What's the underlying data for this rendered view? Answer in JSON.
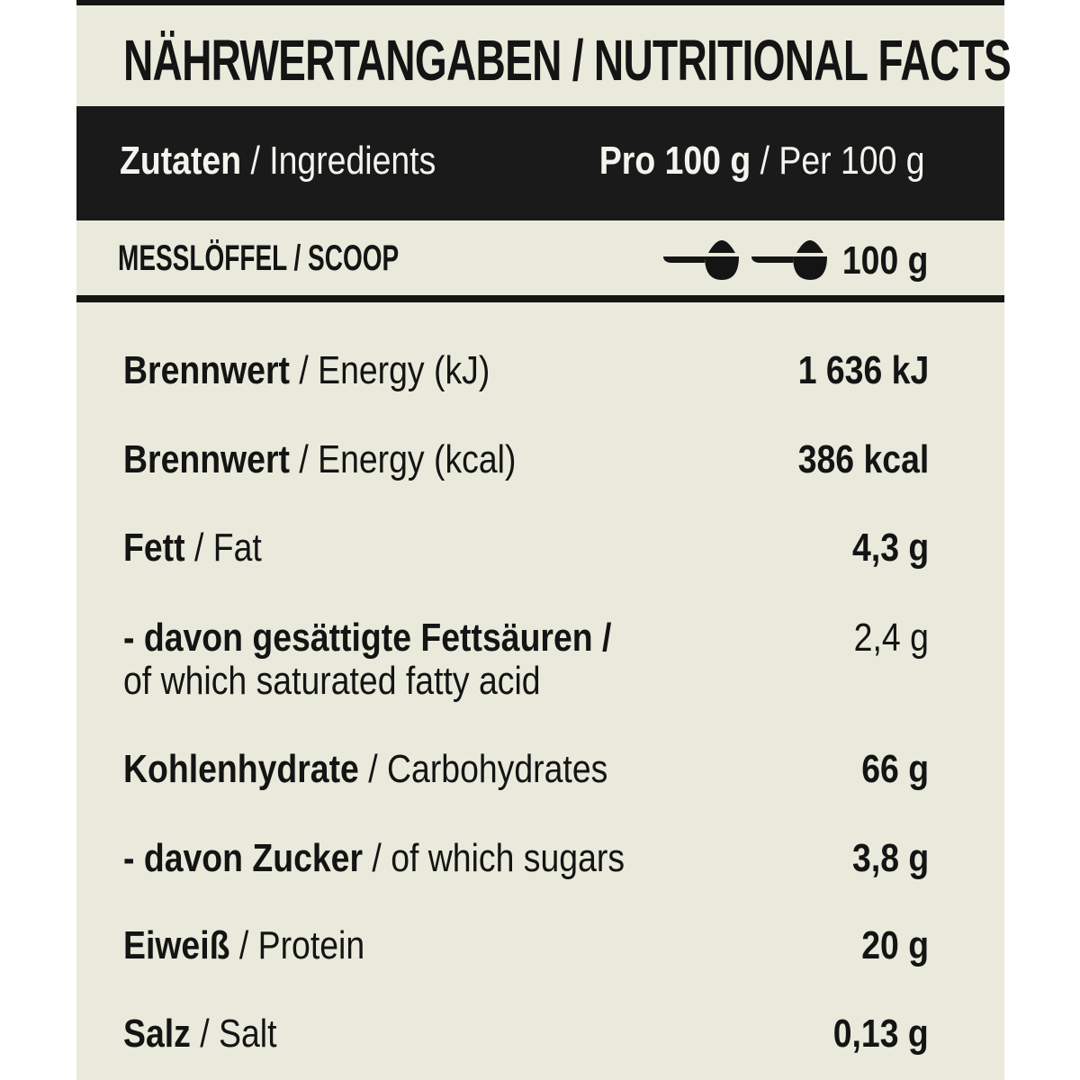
{
  "title": "NÄHRWERTANGABEN / NUTRITIONAL FACTS",
  "header": {
    "left_bold": "Zutaten",
    "left_rest": " / Ingredients",
    "right_bold": "Pro 100 g",
    "right_rest": " / Per 100 g"
  },
  "scoop": {
    "label": "MESSLÖFFEL / SCOOP",
    "icons": [
      "scoop-icon",
      "scoop-icon"
    ],
    "value": "100 g"
  },
  "rows": [
    {
      "de": "Brennwert",
      "en": " / Energy (kJ)",
      "value": "1 636 kJ",
      "value_bold": true
    },
    {
      "de": "Brennwert",
      "en": " / Energy (kcal)",
      "value": "386 kcal",
      "value_bold": true
    },
    {
      "de": "Fett",
      "en": " / Fat",
      "value": "4,3 g",
      "value_bold": true
    },
    {
      "de": "- davon gesättigte Fettsäuren /",
      "en": "of which saturated fatty acid",
      "value": "2,4 g",
      "value_bold": false
    },
    {
      "de": "Kohlenhydrate",
      "en": " / Carbohydrates",
      "value": "66 g",
      "value_bold": true
    },
    {
      "de": "- davon Zucker",
      "en": " / of which sugars",
      "value": "3,8 g",
      "value_bold": true
    },
    {
      "de": "Eiweiß",
      "en": " / Protein",
      "value": "20 g",
      "value_bold": true
    },
    {
      "de": "Salz",
      "en": " / Salt",
      "value": "0,13 g",
      "value_bold": true
    }
  ],
  "colors": {
    "background": "#e9eadb",
    "ink": "#141414",
    "band_text": "#f4f4ee"
  }
}
